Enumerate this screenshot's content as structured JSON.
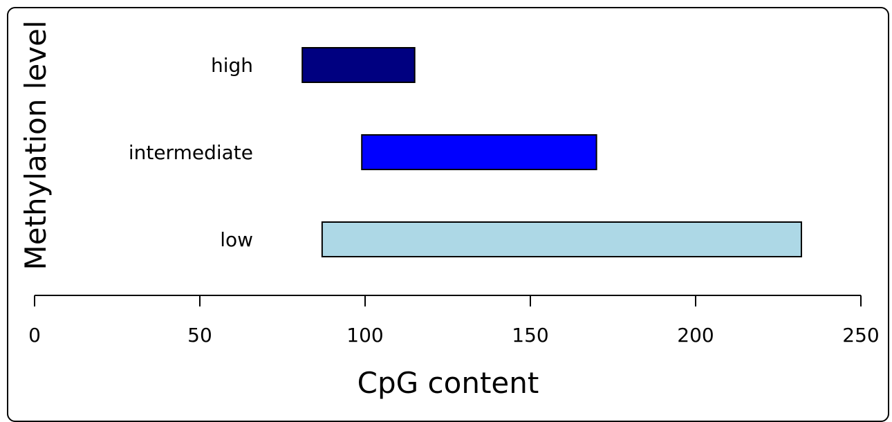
{
  "chart_data": {
    "type": "bar",
    "orientation": "horizontal",
    "bar_style": "range",
    "categories": [
      "high",
      "intermediate",
      "low"
    ],
    "ranges": [
      {
        "category": "high",
        "start": 81,
        "end": 115,
        "color": "#000080"
      },
      {
        "category": "intermediate",
        "start": 99,
        "end": 170,
        "color": "#0000ff"
      },
      {
        "category": "low",
        "start": 87,
        "end": 232,
        "color": "#add8e6"
      }
    ],
    "xlabel": "CpG content",
    "ylabel": "Methylation level",
    "xlim": [
      0,
      250
    ],
    "xticks": [
      0,
      50,
      100,
      150,
      200,
      250
    ],
    "xtick_labels": [
      "0",
      "50",
      "100",
      "150",
      "200",
      "250"
    ],
    "grid": false,
    "legend": "none"
  }
}
